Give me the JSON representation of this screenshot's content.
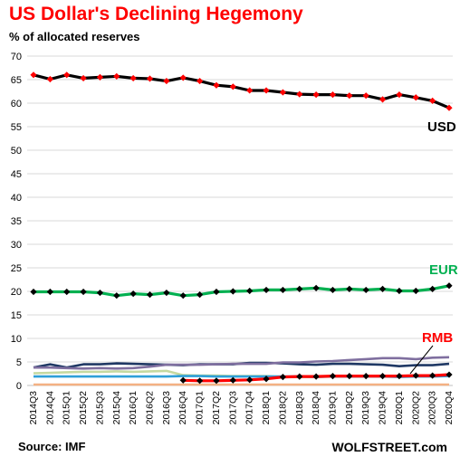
{
  "header": {
    "title": "US Dollar's  Declining Hegemony",
    "subtitle": "% of allocated reserves"
  },
  "footer": {
    "source": "Source: IMF",
    "brand": "WOLFSTREET.com"
  },
  "chart_data": {
    "type": "line",
    "title": "US Dollar's  Declining Hegemony",
    "ylabel": "% of allocated reserves",
    "ylim": [
      0,
      70
    ],
    "yticks": [
      0,
      5,
      10,
      15,
      20,
      25,
      30,
      35,
      40,
      45,
      50,
      55,
      60,
      65,
      70
    ],
    "grid": true,
    "categories": [
      "2014Q3",
      "2014Q4",
      "2015Q1",
      "2015Q2",
      "2015Q3",
      "2015Q4",
      "2016Q1",
      "2016Q2",
      "2016Q3",
      "2016Q4",
      "2017Q1",
      "2017Q2",
      "2017Q3",
      "2017Q4",
      "2018Q1",
      "2018Q2",
      "2018Q3",
      "2018Q4",
      "2019Q1",
      "2019Q2",
      "2019Q3",
      "2019Q4",
      "2020Q1",
      "2020Q2",
      "2020Q3",
      "2020Q4"
    ],
    "series": [
      {
        "name": "USD",
        "label": "USD",
        "color": "#000000",
        "marker_color": "#ff0000",
        "markers": true,
        "label_color": "#000000",
        "values": [
          66.0,
          65.1,
          66.0,
          65.3,
          65.5,
          65.7,
          65.3,
          65.2,
          64.7,
          65.4,
          64.7,
          63.8,
          63.5,
          62.7,
          62.7,
          62.3,
          61.9,
          61.8,
          61.8,
          61.6,
          61.6,
          60.8,
          61.8,
          61.2,
          60.5,
          59.0
        ]
      },
      {
        "name": "EUR",
        "label": "EUR",
        "color": "#00b050",
        "marker_color": "#000000",
        "markers": true,
        "label_color": "#00b050",
        "values": [
          19.9,
          19.9,
          19.9,
          19.9,
          19.7,
          19.1,
          19.5,
          19.3,
          19.7,
          19.1,
          19.3,
          19.9,
          20.0,
          20.1,
          20.3,
          20.3,
          20.5,
          20.7,
          20.3,
          20.5,
          20.3,
          20.5,
          20.1,
          20.1,
          20.5,
          21.2
        ]
      },
      {
        "name": "RMB",
        "label": "RMB",
        "color": "#ff0000",
        "marker_color": "#000000",
        "markers": true,
        "label_color": "#ff0000",
        "values": [
          null,
          null,
          null,
          null,
          null,
          null,
          null,
          null,
          null,
          1.1,
          1.0,
          1.0,
          1.1,
          1.2,
          1.4,
          1.8,
          1.9,
          1.9,
          2.0,
          2.0,
          2.0,
          2.0,
          2.0,
          2.1,
          2.1,
          2.3
        ]
      },
      {
        "color": "#1f3864",
        "markers": false,
        "values": [
          3.8,
          4.5,
          3.8,
          4.5,
          4.5,
          4.7,
          4.6,
          4.5,
          4.4,
          4.3,
          4.5,
          4.5,
          4.5,
          4.8,
          4.8,
          4.7,
          4.5,
          4.4,
          4.6,
          4.6,
          4.5,
          4.4,
          4.1,
          4.3,
          4.3,
          4.6
        ]
      },
      {
        "color": "#7f6f9f",
        "markers": false,
        "values": [
          3.8,
          3.8,
          3.7,
          3.6,
          3.7,
          3.6,
          3.7,
          4.0,
          4.4,
          4.4,
          4.4,
          4.5,
          4.6,
          4.6,
          4.6,
          4.9,
          4.9,
          5.1,
          5.2,
          5.4,
          5.6,
          5.8,
          5.8,
          5.6,
          5.9,
          6.0
        ]
      },
      {
        "color": "#c5d9a0",
        "markers": false,
        "values": [
          2.6,
          2.7,
          2.8,
          2.9,
          2.9,
          3.0,
          2.9,
          3.0,
          3.1,
          2.2,
          2.1,
          2.1,
          2.0,
          2.0,
          2.0,
          1.8,
          1.8,
          1.8,
          1.9,
          1.9,
          1.9,
          1.9,
          1.9,
          1.9,
          2.0,
          2.1
        ]
      },
      {
        "color": "#2e9fd8",
        "markers": false,
        "values": [
          1.9,
          1.9,
          1.9,
          1.9,
          1.9,
          1.9,
          1.9,
          1.9,
          1.9,
          2.0,
          2.0,
          1.9,
          1.9,
          1.9,
          1.9,
          1.9,
          1.9,
          1.8,
          1.9,
          1.9,
          1.9,
          1.9,
          1.8,
          1.9,
          1.9,
          2.0
        ]
      },
      {
        "color": "#f4b183",
        "markers": false,
        "values": [
          0.2,
          0.2,
          0.2,
          0.2,
          0.2,
          0.2,
          0.2,
          0.2,
          0.2,
          0.2,
          0.2,
          0.2,
          0.2,
          0.2,
          0.2,
          0.2,
          0.2,
          0.2,
          0.2,
          0.2,
          0.2,
          0.2,
          0.2,
          0.2,
          0.2,
          0.2
        ]
      }
    ]
  }
}
